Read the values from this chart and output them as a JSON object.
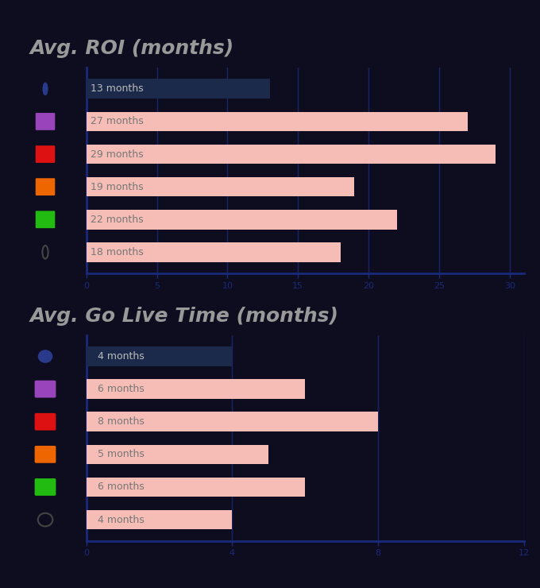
{
  "chart1_title": "Avg. ROI (months)",
  "chart2_title": "Avg. Go Live Time (months)",
  "roi_values": [
    13,
    27,
    29,
    19,
    22,
    18
  ],
  "roi_labels": [
    "13 months",
    "27 months",
    "29 months",
    "19 months",
    "22 months",
    "18 months"
  ],
  "golive_values": [
    4,
    6,
    8,
    5,
    6,
    4
  ],
  "golive_labels": [
    "4 months",
    "6 months",
    "8 months",
    "5 months",
    "6 months",
    "4 months"
  ],
  "bar1_color": "#1b2a4a",
  "bar_other_color": "#f5bdb5",
  "axis_color": "#1a2a7a",
  "text_color": "#999999",
  "title_color": "#999999",
  "bg_color": "#0d0d1f",
  "roi_xlim": [
    0,
    31
  ],
  "roi_xticks": [
    0,
    5,
    10,
    15,
    20,
    25,
    30
  ],
  "golive_xlim": [
    0,
    12
  ],
  "golive_xticks": [
    0,
    4,
    8,
    12
  ],
  "bar_height": 0.6,
  "label_fontsize": 9,
  "title_fontsize": 18,
  "tick_fontsize": 8,
  "icon_colors": [
    "#2a4aaa",
    "#bb4422",
    "#cc1111",
    "#ee6600",
    "#11bb11",
    "#cccccc"
  ],
  "icon2_colors": [
    "#cc2222",
    "#ff8800",
    "#44cc44",
    "#ffffff"
  ]
}
